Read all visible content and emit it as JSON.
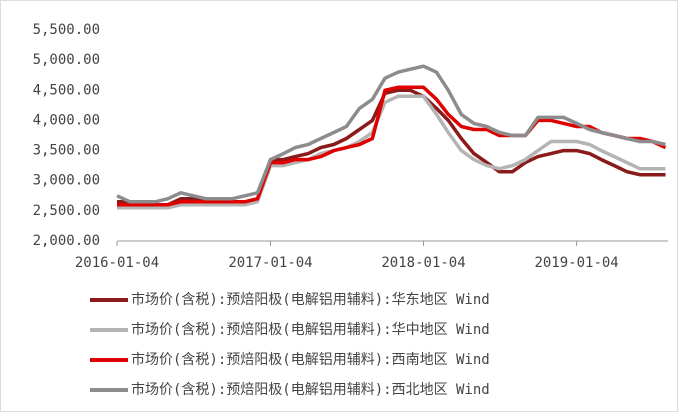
{
  "chart_data": {
    "type": "line",
    "x": [
      "2016-01-04",
      "2016-02-04",
      "2016-03-04",
      "2016-04-04",
      "2016-05-04",
      "2016-06-04",
      "2016-07-04",
      "2016-08-04",
      "2016-09-04",
      "2016-10-04",
      "2016-11-04",
      "2016-12-04",
      "2017-01-04",
      "2017-02-04",
      "2017-03-04",
      "2017-04-04",
      "2017-05-04",
      "2017-06-04",
      "2017-07-04",
      "2017-08-04",
      "2017-09-04",
      "2017-10-04",
      "2017-11-04",
      "2017-12-04",
      "2018-01-04",
      "2018-02-04",
      "2018-03-04",
      "2018-04-04",
      "2018-05-04",
      "2018-06-04",
      "2018-07-04",
      "2018-08-04",
      "2018-09-04",
      "2018-10-04",
      "2018-11-04",
      "2018-12-04",
      "2019-01-04",
      "2019-02-04",
      "2019-03-04",
      "2019-04-04",
      "2019-05-04",
      "2019-06-04",
      "2019-07-04",
      "2019-08-04"
    ],
    "series": [
      {
        "name": "市场价(含税):预焙阳极(电解铝用辅料):华东地区 Wind",
        "color": "#8b1a1a",
        "values": [
          2650,
          2650,
          2650,
          2600,
          2600,
          2700,
          2700,
          2700,
          2650,
          2650,
          2650,
          2700,
          3350,
          3350,
          3400,
          3450,
          3550,
          3600,
          3700,
          3850,
          4000,
          4450,
          4500,
          4500,
          4400,
          4200,
          4000,
          3700,
          3450,
          3300,
          3150,
          3150,
          3300,
          3400,
          3450,
          3500,
          3500,
          3450,
          3350,
          3250,
          3150,
          3100,
          3100,
          3100
        ]
      },
      {
        "name": "市场价(含税):预焙阳极(电解铝用辅料):华中地区 Wind",
        "color": "#b4b4b4",
        "values": [
          2550,
          2550,
          2550,
          2550,
          2550,
          2600,
          2600,
          2600,
          2600,
          2600,
          2600,
          2650,
          3250,
          3250,
          3300,
          3350,
          3450,
          3500,
          3550,
          3650,
          3800,
          4300,
          4400,
          4400,
          4400,
          4100,
          3800,
          3500,
          3350,
          3250,
          3200,
          3250,
          3350,
          3500,
          3650,
          3650,
          3650,
          3600,
          3500,
          3400,
          3300,
          3200,
          3200,
          3200
        ]
      },
      {
        "name": "市场价(含税):预焙阳极(电解铝用辅料):西南地区 Wind",
        "color": "#e00000",
        "values": [
          2600,
          2600,
          2600,
          2600,
          2600,
          2650,
          2650,
          2650,
          2650,
          2650,
          2650,
          2700,
          3300,
          3300,
          3350,
          3350,
          3400,
          3500,
          3550,
          3600,
          3700,
          4500,
          4550,
          4550,
          4550,
          4350,
          4100,
          3900,
          3850,
          3850,
          3750,
          3750,
          3750,
          4000,
          4000,
          3950,
          3900,
          3900,
          3800,
          3750,
          3700,
          3700,
          3650,
          3550
        ]
      },
      {
        "name": "市场价(含税):预焙阳极(电解铝用辅料):西北地区 Wind",
        "color": "#8c8c8c",
        "values": [
          2750,
          2650,
          2650,
          2650,
          2700,
          2800,
          2750,
          2700,
          2700,
          2700,
          2750,
          2800,
          3350,
          3450,
          3550,
          3600,
          3700,
          3800,
          3900,
          4200,
          4350,
          4700,
          4800,
          4850,
          4900,
          4800,
          4500,
          4100,
          3950,
          3900,
          3800,
          3750,
          3750,
          4050,
          4050,
          4050,
          3950,
          3850,
          3800,
          3750,
          3700,
          3650,
          3650,
          3600
        ]
      }
    ],
    "xlim": [
      "2016-01-04",
      "2019-08-10"
    ],
    "xticks": [
      "2016-01-04",
      "2017-01-04",
      "2018-01-04",
      "2019-01-04"
    ],
    "ylim": [
      2000,
      5500
    ],
    "yticks": [
      {
        "value": 2000,
        "label": "2,000.00"
      },
      {
        "value": 2500,
        "label": "2,500.00"
      },
      {
        "value": 3000,
        "label": "3,000.00"
      },
      {
        "value": 3500,
        "label": "3,500.00"
      },
      {
        "value": 4000,
        "label": "4,000.00"
      },
      {
        "value": 4500,
        "label": "4,500.00"
      },
      {
        "value": 5000,
        "label": "5,000.00"
      },
      {
        "value": 5500,
        "label": "5,500.00"
      }
    ],
    "grid": false
  }
}
